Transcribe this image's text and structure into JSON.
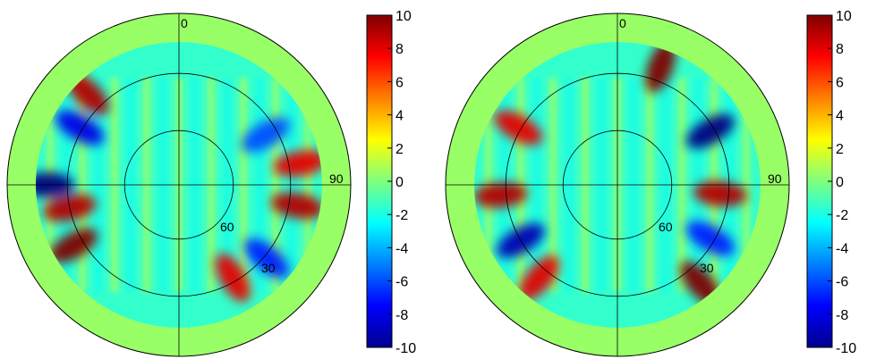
{
  "chart_data": [
    {
      "type": "heatmap",
      "projection": "polar",
      "title": "",
      "angle_labels": [
        "0",
        "90"
      ],
      "radius_labels": [
        "60",
        "30"
      ],
      "radial_rings": [
        60,
        30,
        0
      ],
      "colorbar": {
        "min": -10,
        "max": 10,
        "ticks": [
          "10",
          "8",
          "6",
          "4",
          "2",
          "0",
          "-2",
          "-4",
          "-6",
          "-8",
          "-10"
        ]
      },
      "colormap": "jet",
      "features": [
        {
          "angle": 270,
          "ring": 0.92,
          "value": -10
        },
        {
          "angle": 258,
          "ring": 0.78,
          "value": 9
        },
        {
          "angle": 240,
          "ring": 0.85,
          "value": 10
        },
        {
          "angle": 300,
          "ring": 0.8,
          "value": -8
        },
        {
          "angle": 315,
          "ring": 0.9,
          "value": 9
        },
        {
          "angle": 80,
          "ring": 0.86,
          "value": 8
        },
        {
          "angle": 100,
          "ring": 0.84,
          "value": 9
        },
        {
          "angle": 130,
          "ring": 0.8,
          "value": -7
        },
        {
          "angle": 150,
          "ring": 0.75,
          "value": 8
        },
        {
          "angle": 60,
          "ring": 0.7,
          "value": -6
        }
      ]
    },
    {
      "type": "heatmap",
      "projection": "polar",
      "title": "",
      "angle_labels": [
        "0",
        "90"
      ],
      "radius_labels": [
        "60",
        "30"
      ],
      "radial_rings": [
        60,
        30,
        0
      ],
      "colorbar": {
        "min": -10,
        "max": 10,
        "ticks": [
          "10",
          "8",
          "6",
          "4",
          "2",
          "0",
          "-2",
          "-4",
          "-6",
          "-8",
          "-10"
        ]
      },
      "colormap": "jet",
      "features": [
        {
          "angle": 265,
          "ring": 0.82,
          "value": 9
        },
        {
          "angle": 240,
          "ring": 0.78,
          "value": -9
        },
        {
          "angle": 300,
          "ring": 0.8,
          "value": 8
        },
        {
          "angle": 20,
          "ring": 0.88,
          "value": 10
        },
        {
          "angle": 60,
          "ring": 0.75,
          "value": -10
        },
        {
          "angle": 95,
          "ring": 0.72,
          "value": 9
        },
        {
          "angle": 140,
          "ring": 0.9,
          "value": 10
        },
        {
          "angle": 120,
          "ring": 0.75,
          "value": -7
        },
        {
          "angle": 220,
          "ring": 0.85,
          "value": 8
        }
      ]
    }
  ]
}
